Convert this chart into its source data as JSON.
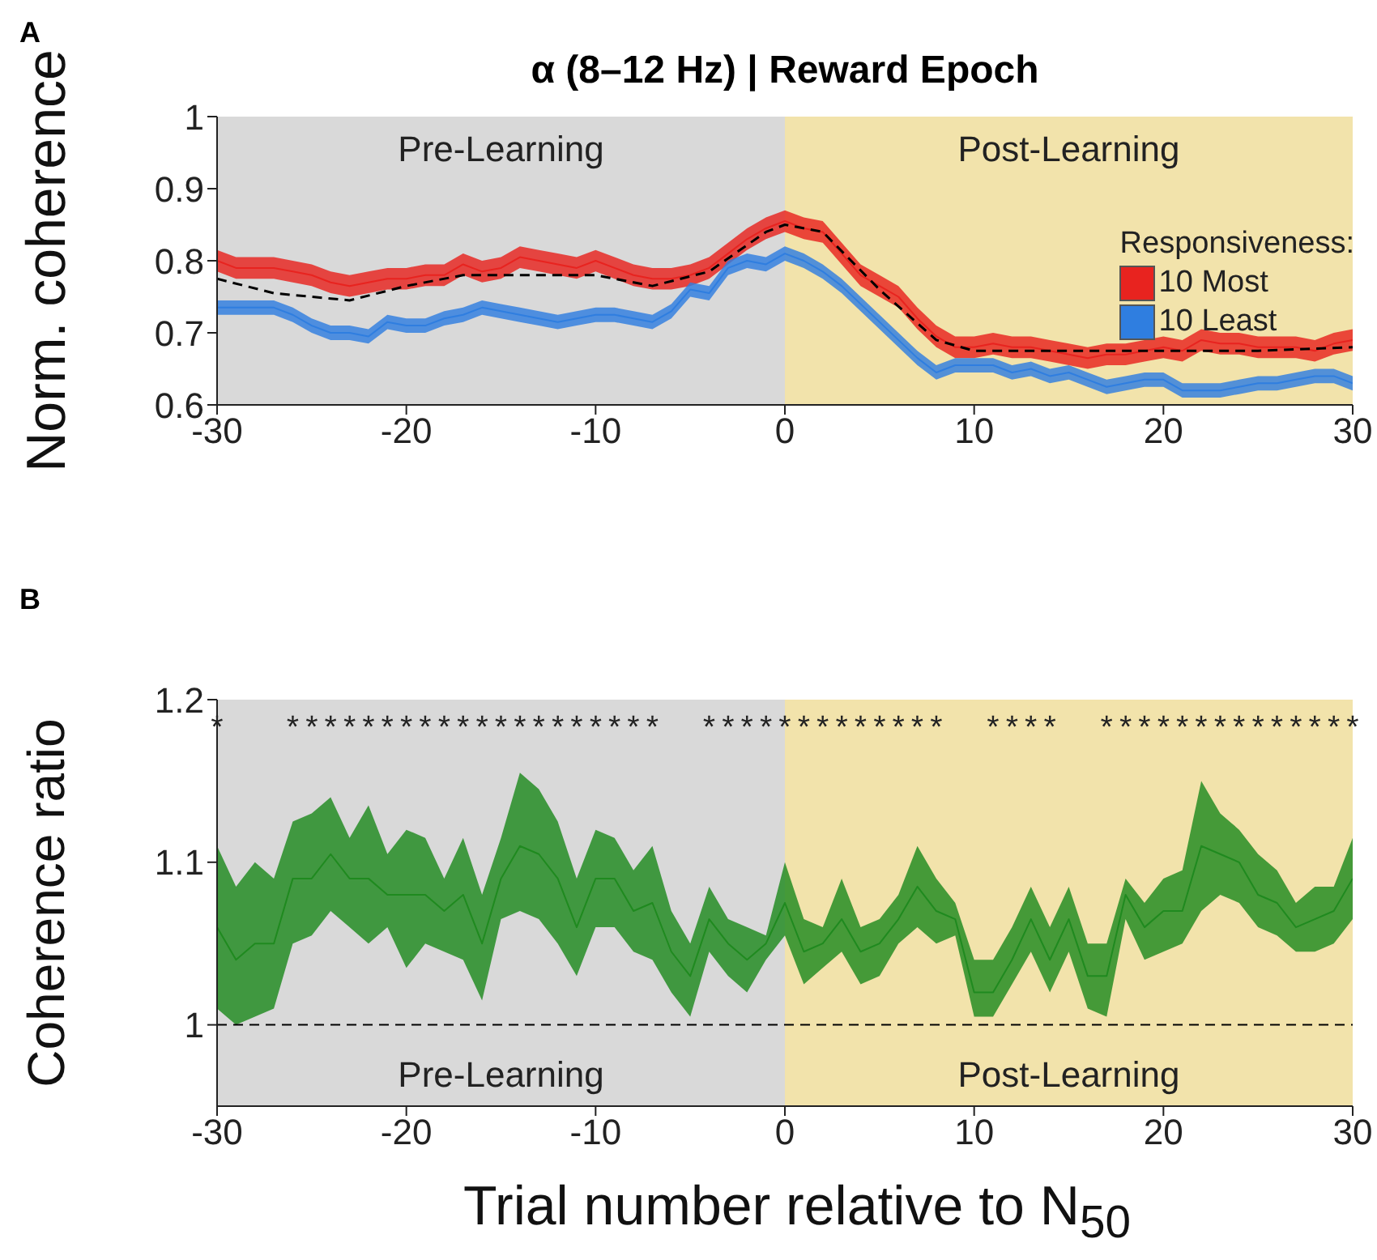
{
  "chart_data": [
    {
      "type": "line",
      "title": "α (8–12 Hz) | Reward Epoch",
      "ylabel": "Norm. coherence",
      "legend_title": "Responsiveness:",
      "legend": "right",
      "x": [
        -30,
        -29,
        -28,
        -27,
        -26,
        -25,
        -24,
        -23,
        -22,
        -21,
        -20,
        -19,
        -18,
        -17,
        -16,
        -15,
        -14,
        -13,
        -12,
        -11,
        -10,
        -9,
        -8,
        -7,
        -6,
        -5,
        -4,
        -3,
        -2,
        -1,
        0,
        1,
        2,
        3,
        4,
        5,
        6,
        7,
        8,
        9,
        10,
        11,
        12,
        13,
        14,
        15,
        16,
        17,
        18,
        19,
        20,
        21,
        22,
        23,
        24,
        25,
        26,
        27,
        28,
        29,
        30
      ],
      "series": [
        {
          "name": "10 Most",
          "color": "#e8231f",
          "values": [
            0.8,
            0.79,
            0.79,
            0.79,
            0.785,
            0.78,
            0.77,
            0.765,
            0.77,
            0.775,
            0.775,
            0.78,
            0.78,
            0.795,
            0.785,
            0.79,
            0.805,
            0.8,
            0.795,
            0.79,
            0.8,
            0.79,
            0.78,
            0.775,
            0.775,
            0.78,
            0.79,
            0.81,
            0.83,
            0.845,
            0.855,
            0.845,
            0.84,
            0.81,
            0.78,
            0.765,
            0.75,
            0.72,
            0.695,
            0.68,
            0.68,
            0.685,
            0.68,
            0.68,
            0.675,
            0.67,
            0.665,
            0.67,
            0.67,
            0.675,
            0.68,
            0.675,
            0.69,
            0.685,
            0.685,
            0.68,
            0.68,
            0.68,
            0.675,
            0.685,
            0.69
          ],
          "lower": [
            0.785,
            0.775,
            0.775,
            0.775,
            0.77,
            0.765,
            0.755,
            0.75,
            0.755,
            0.76,
            0.76,
            0.765,
            0.765,
            0.78,
            0.77,
            0.775,
            0.79,
            0.785,
            0.78,
            0.775,
            0.785,
            0.775,
            0.765,
            0.76,
            0.76,
            0.765,
            0.775,
            0.795,
            0.815,
            0.83,
            0.84,
            0.83,
            0.825,
            0.795,
            0.765,
            0.75,
            0.735,
            0.705,
            0.68,
            0.665,
            0.665,
            0.67,
            0.665,
            0.665,
            0.66,
            0.655,
            0.65,
            0.655,
            0.655,
            0.66,
            0.665,
            0.66,
            0.675,
            0.67,
            0.67,
            0.665,
            0.665,
            0.665,
            0.66,
            0.67,
            0.675
          ],
          "upper": [
            0.815,
            0.805,
            0.805,
            0.805,
            0.8,
            0.795,
            0.785,
            0.78,
            0.785,
            0.79,
            0.79,
            0.795,
            0.795,
            0.81,
            0.8,
            0.805,
            0.82,
            0.815,
            0.81,
            0.805,
            0.815,
            0.805,
            0.795,
            0.79,
            0.79,
            0.795,
            0.805,
            0.825,
            0.845,
            0.86,
            0.87,
            0.86,
            0.855,
            0.825,
            0.795,
            0.78,
            0.765,
            0.735,
            0.71,
            0.695,
            0.695,
            0.7,
            0.695,
            0.695,
            0.69,
            0.685,
            0.68,
            0.685,
            0.685,
            0.69,
            0.695,
            0.69,
            0.705,
            0.7,
            0.7,
            0.695,
            0.695,
            0.695,
            0.69,
            0.7,
            0.705
          ]
        },
        {
          "name": "10 Least",
          "color": "#2f7ee0",
          "values": [
            0.735,
            0.735,
            0.735,
            0.735,
            0.725,
            0.71,
            0.7,
            0.7,
            0.695,
            0.715,
            0.71,
            0.71,
            0.72,
            0.725,
            0.735,
            0.73,
            0.725,
            0.72,
            0.715,
            0.72,
            0.725,
            0.725,
            0.72,
            0.715,
            0.73,
            0.76,
            0.755,
            0.79,
            0.8,
            0.795,
            0.81,
            0.8,
            0.785,
            0.765,
            0.74,
            0.715,
            0.69,
            0.665,
            0.645,
            0.655,
            0.655,
            0.655,
            0.645,
            0.65,
            0.64,
            0.645,
            0.635,
            0.625,
            0.63,
            0.635,
            0.635,
            0.62,
            0.62,
            0.62,
            0.625,
            0.63,
            0.63,
            0.635,
            0.64,
            0.64,
            0.63
          ],
          "lower": [
            0.725,
            0.725,
            0.725,
            0.725,
            0.715,
            0.7,
            0.69,
            0.69,
            0.685,
            0.705,
            0.7,
            0.7,
            0.71,
            0.715,
            0.725,
            0.72,
            0.715,
            0.71,
            0.705,
            0.71,
            0.715,
            0.715,
            0.71,
            0.705,
            0.72,
            0.75,
            0.745,
            0.78,
            0.79,
            0.785,
            0.8,
            0.79,
            0.775,
            0.755,
            0.73,
            0.705,
            0.68,
            0.655,
            0.635,
            0.645,
            0.645,
            0.645,
            0.635,
            0.64,
            0.63,
            0.635,
            0.625,
            0.615,
            0.62,
            0.625,
            0.625,
            0.61,
            0.61,
            0.61,
            0.615,
            0.62,
            0.62,
            0.625,
            0.63,
            0.63,
            0.62
          ],
          "upper": [
            0.745,
            0.745,
            0.745,
            0.745,
            0.735,
            0.72,
            0.71,
            0.71,
            0.705,
            0.725,
            0.72,
            0.72,
            0.73,
            0.735,
            0.745,
            0.74,
            0.735,
            0.73,
            0.725,
            0.73,
            0.735,
            0.735,
            0.73,
            0.725,
            0.74,
            0.77,
            0.765,
            0.8,
            0.81,
            0.805,
            0.82,
            0.81,
            0.795,
            0.775,
            0.75,
            0.725,
            0.7,
            0.675,
            0.655,
            0.665,
            0.665,
            0.665,
            0.655,
            0.66,
            0.65,
            0.655,
            0.645,
            0.635,
            0.64,
            0.645,
            0.645,
            0.63,
            0.63,
            0.63,
            0.635,
            0.64,
            0.64,
            0.645,
            0.65,
            0.65,
            0.64
          ]
        },
        {
          "type": "line",
          "color": "#000000",
          "line_style": "dashed",
          "x": [
            -30,
            -27,
            -23,
            -20,
            -17,
            -13,
            -10,
            -7,
            -4,
            -1,
            0,
            2,
            5,
            8,
            10,
            15,
            20,
            25,
            30
          ],
          "values": [
            0.775,
            0.755,
            0.745,
            0.765,
            0.78,
            0.78,
            0.78,
            0.765,
            0.785,
            0.84,
            0.85,
            0.84,
            0.76,
            0.69,
            0.675,
            0.675,
            0.675,
            0.675,
            0.68
          ]
        }
      ],
      "xlim": [
        -30,
        30
      ],
      "xticks": [
        -30,
        -20,
        -10,
        0,
        10,
        20,
        30
      ],
      "ylim": [
        0.6,
        1
      ],
      "yticks": [
        0.6,
        0.7,
        0.8,
        0.9,
        1
      ],
      "bands": [
        {
          "axis": "x",
          "from": -30,
          "to": 0,
          "label": "Pre-Learning",
          "color": "#d9d9d9"
        },
        {
          "axis": "x",
          "from": 0,
          "to": 30,
          "label": "Post-Learning",
          "color": "#f2e3ab"
        }
      ],
      "annotations": [
        "A"
      ]
    },
    {
      "type": "line",
      "xlabel": "Trial number relative to N$_{50}$",
      "ylabel": "Coherence ratio",
      "x": [
        -30,
        -29,
        -28,
        -27,
        -26,
        -25,
        -24,
        -23,
        -22,
        -21,
        -20,
        -19,
        -18,
        -17,
        -16,
        -15,
        -14,
        -13,
        -12,
        -11,
        -10,
        -9,
        -8,
        -7,
        -6,
        -5,
        -4,
        -3,
        -2,
        -1,
        0,
        1,
        2,
        3,
        4,
        5,
        6,
        7,
        8,
        9,
        10,
        11,
        12,
        13,
        14,
        15,
        16,
        17,
        18,
        19,
        20,
        21,
        22,
        23,
        24,
        25,
        26,
        27,
        28,
        29,
        30
      ],
      "series": [
        {
          "color": "#1f8a1f",
          "values": [
            1.06,
            1.04,
            1.05,
            1.05,
            1.09,
            1.09,
            1.105,
            1.09,
            1.09,
            1.08,
            1.08,
            1.08,
            1.07,
            1.08,
            1.05,
            1.09,
            1.11,
            1.105,
            1.09,
            1.06,
            1.09,
            1.09,
            1.07,
            1.075,
            1.045,
            1.03,
            1.065,
            1.05,
            1.04,
            1.05,
            1.075,
            1.045,
            1.05,
            1.065,
            1.045,
            1.05,
            1.065,
            1.085,
            1.07,
            1.065,
            1.02,
            1.02,
            1.04,
            1.065,
            1.04,
            1.065,
            1.03,
            1.03,
            1.08,
            1.06,
            1.07,
            1.07,
            1.11,
            1.105,
            1.1,
            1.08,
            1.075,
            1.06,
            1.065,
            1.07,
            1.09
          ],
          "lower": [
            1.01,
            1.0,
            1.005,
            1.01,
            1.05,
            1.055,
            1.07,
            1.06,
            1.05,
            1.06,
            1.035,
            1.05,
            1.045,
            1.04,
            1.015,
            1.065,
            1.07,
            1.065,
            1.05,
            1.03,
            1.06,
            1.06,
            1.045,
            1.04,
            1.02,
            1.005,
            1.045,
            1.03,
            1.02,
            1.04,
            1.055,
            1.025,
            1.035,
            1.045,
            1.025,
            1.03,
            1.05,
            1.06,
            1.05,
            1.055,
            1.005,
            1.005,
            1.025,
            1.045,
            1.02,
            1.045,
            1.01,
            1.005,
            1.065,
            1.04,
            1.045,
            1.05,
            1.07,
            1.08,
            1.075,
            1.06,
            1.055,
            1.045,
            1.045,
            1.05,
            1.065
          ],
          "upper": [
            1.11,
            1.085,
            1.1,
            1.09,
            1.125,
            1.13,
            1.14,
            1.115,
            1.135,
            1.105,
            1.12,
            1.115,
            1.09,
            1.115,
            1.08,
            1.115,
            1.155,
            1.145,
            1.125,
            1.09,
            1.12,
            1.115,
            1.095,
            1.11,
            1.07,
            1.05,
            1.085,
            1.065,
            1.06,
            1.055,
            1.1,
            1.065,
            1.06,
            1.09,
            1.06,
            1.065,
            1.08,
            1.11,
            1.09,
            1.075,
            1.04,
            1.04,
            1.06,
            1.085,
            1.06,
            1.085,
            1.05,
            1.05,
            1.09,
            1.075,
            1.09,
            1.095,
            1.15,
            1.13,
            1.12,
            1.105,
            1.095,
            1.075,
            1.085,
            1.085,
            1.115
          ]
        }
      ],
      "xlim": [
        -30,
        30
      ],
      "xticks": [
        -30,
        -20,
        -10,
        0,
        10,
        20,
        30
      ],
      "ylim": [
        0.95,
        1.2
      ],
      "yticks": [
        1,
        1.1,
        1.2
      ],
      "bands": [
        {
          "axis": "x",
          "from": -30,
          "to": 0,
          "label": "Pre-Learning",
          "color": "#d9d9d9"
        },
        {
          "axis": "x",
          "from": 0,
          "to": 30,
          "label": "Post-Learning",
          "color": "#f2e3ab"
        }
      ],
      "ref_lines": [
        {
          "axis": "y",
          "value": 1,
          "color": "#000000",
          "line_style": "dashed"
        }
      ],
      "annotations": [
        "B",
        "*   ********************  *************  ****  **************"
      ]
    }
  ]
}
